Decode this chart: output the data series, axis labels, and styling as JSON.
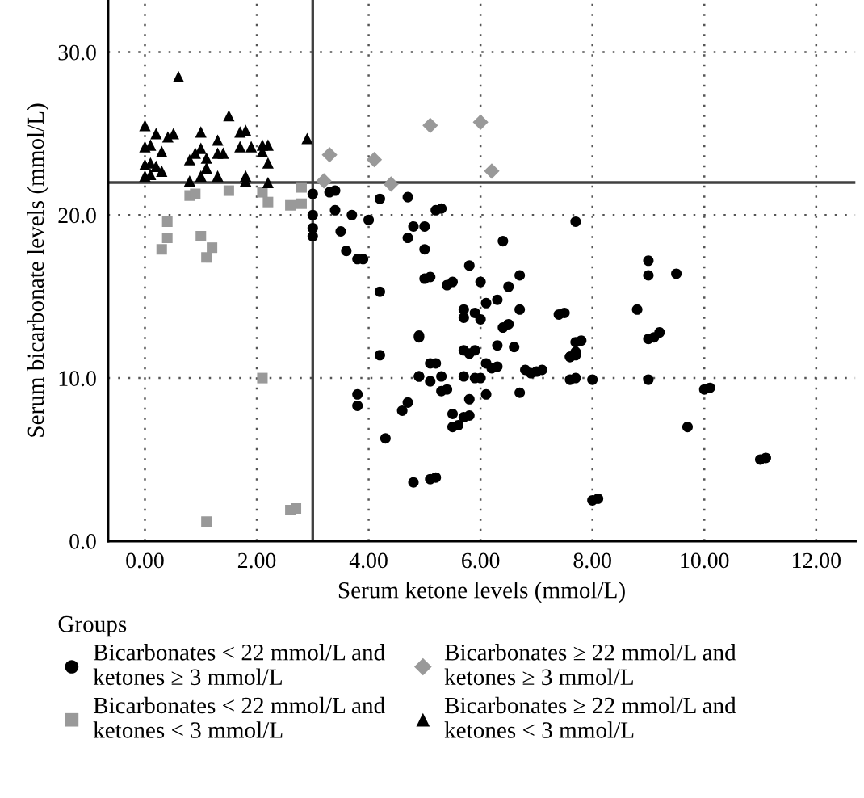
{
  "chart_data": {
    "type": "scatter",
    "xlabel": "Serum ketone levels (mmol/L)",
    "ylabel": "Serum bicarbonate levels (mmol/L)",
    "legend_title": "Groups",
    "legend": "bottom",
    "grid": true,
    "xlim": [
      -0.66,
      12.7
    ],
    "ylim": [
      0,
      33.2
    ],
    "xticks": [
      {
        "value": 0,
        "label": "0.00"
      },
      {
        "value": 2,
        "label": "2.00"
      },
      {
        "value": 4,
        "label": "4.00"
      },
      {
        "value": 6,
        "label": "6.00"
      },
      {
        "value": 8,
        "label": "8.00"
      },
      {
        "value": 10,
        "label": "10.00"
      },
      {
        "value": 12,
        "label": "12.00"
      }
    ],
    "yticks": [
      {
        "value": 0,
        "label": "0.0"
      },
      {
        "value": 10,
        "label": "10.0"
      },
      {
        "value": 20,
        "label": "20.0"
      },
      {
        "value": 30,
        "label": "30.0"
      }
    ],
    "ref_lines": [
      {
        "axis": "x",
        "value": 3,
        "color": "#404040"
      },
      {
        "axis": "y",
        "value": 22,
        "color": "#404040"
      }
    ],
    "series": [
      {
        "name": "Bicarbonates < 22 mmol/L and\nketones ≥ 3 mmol/L",
        "color": "#000000",
        "marker": "circle",
        "x": [
          3.0,
          3.0,
          3.0,
          3.0,
          3.3,
          3.4,
          3.4,
          3.5,
          3.7,
          3.6,
          3.8,
          3.9,
          4.0,
          4.2,
          4.7,
          4.2,
          4.8,
          5.0,
          4.7,
          5.0,
          5.2,
          5.3,
          5.0,
          5.1,
          5.4,
          5.5,
          5.8,
          6.0,
          6.4,
          6.7,
          6.5,
          6.1,
          6.3,
          5.7,
          5.7,
          5.9,
          6.0,
          6.7,
          7.4,
          7.5,
          7.7,
          4.9,
          4.9,
          5.7,
          5.9,
          6.3,
          6.6,
          6.4,
          6.5,
          4.2,
          7.7,
          5.8,
          7.6,
          7.7,
          6.1,
          6.2,
          6.3,
          5.1,
          5.2,
          4.9,
          4.9,
          5.1,
          5.3,
          5.7,
          5.9,
          6.0,
          6.1,
          5.8,
          5.3,
          5.4,
          6.8,
          6.9,
          7.0,
          7.1,
          6.7,
          7.6,
          7.7,
          3.8,
          3.8,
          4.6,
          4.7,
          4.3,
          5.5,
          5.5,
          5.6,
          5.7,
          5.8,
          4.8,
          5.1,
          5.2,
          9.0,
          9.0,
          9.5,
          8.8,
          7.8,
          7.6,
          7.7,
          8.0,
          9.0,
          9.1,
          9.2,
          9.0,
          10.0,
          10.1,
          9.7,
          11.0,
          11.1,
          8.0,
          8.1
        ],
        "values": [
          21.3,
          20.0,
          19.2,
          18.7,
          21.4,
          21.5,
          20.3,
          19.0,
          20.0,
          17.8,
          17.3,
          17.3,
          19.7,
          21.0,
          21.1,
          15.3,
          19.3,
          19.3,
          18.6,
          17.9,
          20.3,
          20.4,
          16.1,
          16.2,
          15.7,
          15.9,
          16.9,
          15.9,
          18.4,
          16.3,
          15.6,
          14.6,
          14.8,
          14.2,
          13.7,
          14.0,
          13.6,
          14.2,
          13.9,
          14.0,
          19.6,
          12.5,
          12.6,
          11.7,
          11.7,
          12.0,
          11.9,
          13.1,
          13.3,
          11.4,
          12.2,
          11.5,
          11.3,
          11.6,
          10.9,
          10.6,
          10.7,
          10.9,
          10.9,
          10.1,
          10.1,
          9.8,
          10.1,
          10.1,
          10.0,
          10.0,
          9.0,
          8.7,
          9.2,
          9.3,
          10.5,
          10.3,
          10.4,
          10.5,
          9.1,
          9.9,
          10.0,
          9.0,
          8.3,
          8.0,
          8.5,
          6.3,
          7.8,
          7.0,
          7.1,
          7.6,
          7.7,
          3.6,
          3.8,
          3.9,
          17.2,
          16.3,
          16.4,
          14.2,
          12.3,
          11.3,
          11.4,
          9.9,
          12.4,
          12.5,
          12.8,
          9.9,
          9.3,
          9.4,
          7.0,
          5.0,
          5.1,
          2.5,
          2.6
        ]
      },
      {
        "name": "Bicarbonates < 22 mmol/L and\nketones < 3 mmol/L",
        "color": "#999999",
        "marker": "square",
        "x": [
          0.8,
          0.9,
          1.5,
          2.1,
          2.2,
          2.6,
          2.8,
          2.8,
          0.4,
          0.4,
          0.3,
          1.0,
          1.2,
          1.1,
          2.1,
          1.1,
          2.6,
          2.7
        ],
        "values": [
          21.2,
          21.3,
          21.5,
          21.4,
          20.8,
          20.6,
          20.7,
          21.7,
          19.6,
          18.6,
          17.9,
          18.7,
          18.0,
          17.4,
          10.0,
          1.2,
          1.9,
          2.0
        ]
      },
      {
        "name": "Bicarbonates ≥ 22 mmol/L and\nketones ≥ 3 mmol/L",
        "color": "#999999",
        "marker": "diamond",
        "x": [
          3.3,
          3.2,
          4.1,
          4.4,
          5.1,
          6.0,
          6.2
        ],
        "values": [
          23.7,
          22.1,
          23.4,
          21.9,
          25.5,
          25.7,
          22.7
        ]
      },
      {
        "name": "Bicarbonates ≥ 22 mmol/L and\nketones < 3 mmol/L",
        "color": "#000000",
        "marker": "triangle",
        "x": [
          0.6,
          0.0,
          0.2,
          0.41,
          0.51,
          0.0,
          0.1,
          0.3,
          0.0,
          0.1,
          0.2,
          0.3,
          0.0,
          0.1,
          1.0,
          1.5,
          1.7,
          1.8,
          1.3,
          1.0,
          0.9,
          0.8,
          1.1,
          1.3,
          1.4,
          1.7,
          1.9,
          2.1,
          2.2,
          2.1,
          2.2,
          1.1,
          0.8,
          1.0,
          1.3,
          1.8,
          1.8,
          2.2,
          2.9
        ],
        "values": [
          28.5,
          25.5,
          25.0,
          24.8,
          25.0,
          24.2,
          24.3,
          23.9,
          23.1,
          23.2,
          23.0,
          22.7,
          22.4,
          22.5,
          25.1,
          26.1,
          25.1,
          25.2,
          24.6,
          24.1,
          23.8,
          23.4,
          23.5,
          23.8,
          23.8,
          24.2,
          24.2,
          24.3,
          24.3,
          23.9,
          23.2,
          22.9,
          22.1,
          22.4,
          22.4,
          22.4,
          22.1,
          22.0,
          24.7
        ]
      }
    ]
  }
}
